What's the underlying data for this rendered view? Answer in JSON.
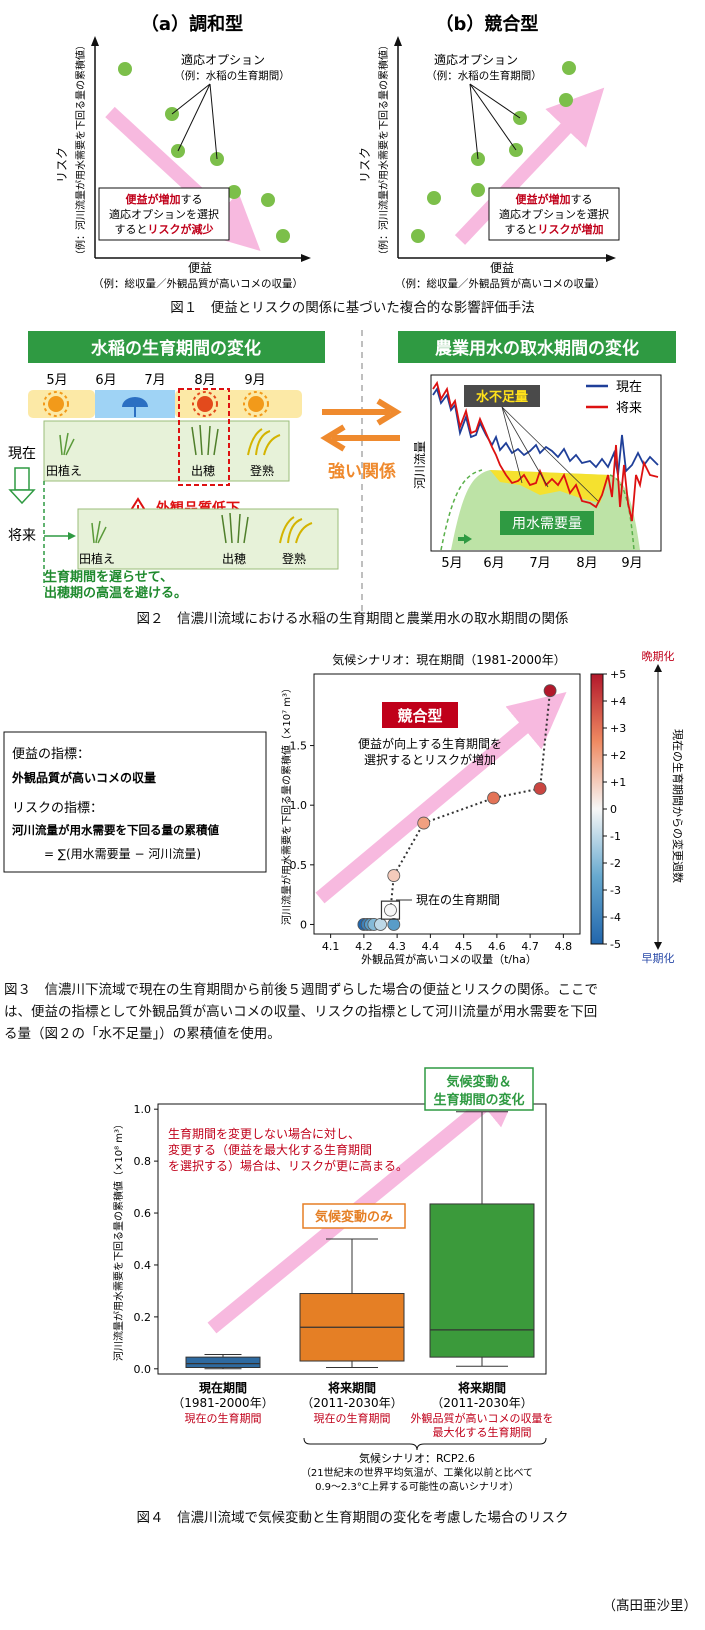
{
  "fig1": {
    "panel_a_title": "（a）調和型",
    "panel_b_title": "（b）競合型",
    "ylabel_main": "リスク",
    "ylabel_sub": "（例：河川流量が用水需要を下回る量の累積値）",
    "xlabel_main": "便益",
    "xlabel_sub": "（例：総収量／外観品質が高いコメの収量）",
    "option_label": "適応オプション",
    "option_example": "（例：水稲の生育期間）",
    "a_box": {
      "l1a": "便益が増加",
      "l1b": "する",
      "l2": "適応オプションを選択",
      "l3a": "すると",
      "l3b": "リスクが減少"
    },
    "b_box": {
      "l1a": "便益が増加",
      "l1b": "する",
      "l2": "適応オプションを選択",
      "l3a": "すると",
      "l3b": "リスクが増加"
    },
    "caption": "図１　便益とリスクの関係に基づいた複合的な影響評価手法"
  },
  "fig2": {
    "left_header": "水稲の生育期間の変化",
    "right_header": "農業用水の取水期間の変化",
    "months": [
      "5月",
      "6月",
      "7月",
      "8月",
      "9月"
    ],
    "row_now": "現在",
    "row_future": "将来",
    "stages": [
      "田植え",
      "出穂",
      "登熟"
    ],
    "warning": "外観品質低下",
    "note_l1": "生育期間を遅らせて、",
    "note_l2": "出穂期の高温を避ける。",
    "strong": "強い関係",
    "shortage": "水不足量",
    "legend_now": "現在",
    "legend_future": "将来",
    "river_label": "河川流量",
    "demand_label": "用水需要量",
    "caption": "図２　信濃川流域における水稲の生育期間と農業用水の取水期間の関係"
  },
  "fig3": {
    "info_benefit_h": "便益の指標：",
    "info_benefit": "外観品質が高いコメの収量",
    "info_risk_h": "リスクの指標：",
    "info_risk": "河川流量が用水需要を下回る量の累積値",
    "info_formula": "= ∑(用水需要量 − 河川流量)",
    "scenario": "気候シナリオ：現在期間（1981-2000年）",
    "badge": "競合型",
    "msg_l1": "便益が向上する生育期間を",
    "msg_l2": "選択するとリスクが増加",
    "current_label": "現在の生育期間",
    "ylabel": "河川流量が用水需要を下回る量の累積値（×10⁷ m³）",
    "xlabel": "外観品質が高いコメの収量（t/ha）",
    "cbar_label": "現在の生育期間からの変更週数",
    "cbar_top": "晩期化",
    "cbar_bottom": "早期化",
    "xticks": [
      "4.1",
      "4.2",
      "4.3",
      "4.4",
      "4.5",
      "4.6",
      "4.7",
      "4.8"
    ],
    "yticks": [
      "0",
      "0.5",
      "1.0",
      "1.5"
    ],
    "cticks": [
      "+5",
      "+4",
      "+3",
      "+2",
      "+1",
      "0",
      "-1",
      "-2",
      "-3",
      "-4",
      "-5"
    ],
    "caption_l1": "図３　信濃川下流域で現在の生育期間から前後５週間ずらした場合の便益とリスクの関係。ここで",
    "caption_l2": "は、便益の指標として外観品質が高いコメの収量、リスクの指標として河川流量が用水需要を下回",
    "caption_l3": "る量（図２の「水不足量」）の累積値を使用。"
  },
  "fig4": {
    "badge_cc_l1": "気候変動＆",
    "badge_cc_l2": "生育期間の変化",
    "badge_climate": "気候変動のみ",
    "msg_l1": "生育期間を変更しない場合に対し、",
    "msg_l2": "変更する（便益を最大化する生育期間",
    "msg_l3": "を選択する）場合は、リスクが更に高まる。",
    "ylabel": "河川流量が用水需要を下回る量の累積値（×10⁸ m³）",
    "yticks": [
      "0.0",
      "0.2",
      "0.4",
      "0.6",
      "0.8",
      "1.0"
    ],
    "cat1": [
      "現在期間",
      "（1981-2000年）",
      "現在の生育期間"
    ],
    "cat2": [
      "将来期間",
      "（2011-2030年）",
      "現在の生育期間"
    ],
    "cat3": [
      "将来期間",
      "（2011-2030年）",
      "外観品質が高いコメの収量を",
      "最大化する生育期間"
    ],
    "scen_l1": "気候シナリオ：RCP2.6",
    "scen_l2": "（21世紀末の世界平均気温が、工業化以前と比べて",
    "scen_l3": "0.9～2.3°C上昇する可能性の高いシナリオ）",
    "caption": "図４　信濃川流域で気候変動と生育期間の変化を考慮した場合のリスク"
  },
  "author": "（髙田亜沙里）",
  "chart_data": [
    {
      "type": "scatter",
      "title": "気候シナリオ：現在期間（1981-2000年）",
      "xlabel": "外観品質が高いコメの収量（t/ha）",
      "ylabel": "河川流量が用水需要を下回る量の累積値（×10⁷ m³）",
      "xlim": [
        4.05,
        4.85
      ],
      "ylim": [
        -0.08,
        2.1
      ],
      "colorbar": {
        "label": "現在の生育期間からの変更週数",
        "range": [
          -5,
          5
        ]
      },
      "points": [
        {
          "x": 4.2,
          "y": 0.0,
          "c": -5
        },
        {
          "x": 4.21,
          "y": 0.0,
          "c": -4
        },
        {
          "x": 4.22,
          "y": 0.0,
          "c": -3
        },
        {
          "x": 4.23,
          "y": 0.0,
          "c": -2
        },
        {
          "x": 4.25,
          "y": 0.0,
          "c": -1
        },
        {
          "x": 4.29,
          "y": 0.0,
          "c": -3
        },
        {
          "x": 4.28,
          "y": 0.12,
          "c": 0
        },
        {
          "x": 4.29,
          "y": 0.41,
          "c": 1
        },
        {
          "x": 4.38,
          "y": 0.85,
          "c": 2
        },
        {
          "x": 4.59,
          "y": 1.06,
          "c": 3
        },
        {
          "x": 4.73,
          "y": 1.14,
          "c": 4
        },
        {
          "x": 4.76,
          "y": 1.96,
          "c": 5
        }
      ]
    },
    {
      "type": "box",
      "ylabel": "河川流量が用水需要を下回る量の累積値（×10⁸ m³）",
      "ylim": [
        -0.02,
        1.02
      ],
      "categories": [
        "現在期間（1981-2000年）",
        "将来期間（2011-2030年）現在の生育期間",
        "将来期間（2011-2030年）外観品質が高いコメの収量を最大化する生育期間"
      ],
      "boxes": [
        {
          "min": 0.0,
          "q1": 0.005,
          "median": 0.02,
          "q3": 0.045,
          "max": 0.055,
          "color": "#2e6aa0"
        },
        {
          "min": 0.005,
          "q1": 0.03,
          "median": 0.16,
          "q3": 0.29,
          "max": 0.5,
          "color": "#e57f25"
        },
        {
          "min": 0.01,
          "q1": 0.045,
          "median": 0.15,
          "q3": 0.635,
          "max": 0.99,
          "color": "#3b9a3b"
        }
      ]
    }
  ]
}
